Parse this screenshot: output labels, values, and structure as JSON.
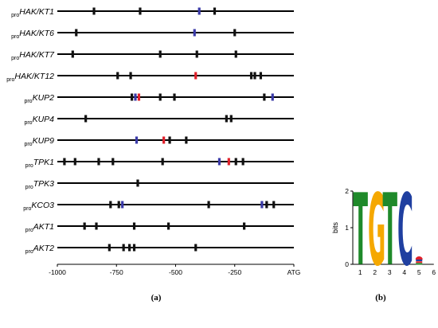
{
  "panel_a": {
    "label": "(a)",
    "promoters": [
      {
        "prefix": "pro",
        "name": "HAK/KT1",
        "black": [
          -845,
          -650,
          -335
        ],
        "blue": [
          -400
        ],
        "red": []
      },
      {
        "prefix": "pro",
        "name": "HAK/KT6",
        "black": [
          -920,
          -250
        ],
        "blue": [
          -420
        ],
        "red": []
      },
      {
        "prefix": "pro",
        "name": "HAK/KT7",
        "black": [
          -935,
          -565,
          -410,
          -245
        ],
        "blue": [],
        "red": []
      },
      {
        "prefix": "pro",
        "name": "HAK/KT12",
        "black": [
          -745,
          -690,
          -180,
          -165,
          -140
        ],
        "blue": [],
        "red": [
          -415
        ]
      },
      {
        "prefix": "pro",
        "name": "KUP2",
        "black": [
          -685,
          -565,
          -505,
          -125
        ],
        "blue": [
          -670,
          -90
        ],
        "red": [
          -655
        ]
      },
      {
        "prefix": "pro",
        "name": "KUP4",
        "black": [
          -880,
          -285,
          -265
        ],
        "blue": [],
        "red": []
      },
      {
        "prefix": "pro",
        "name": "KUP9",
        "black": [
          -525,
          -455
        ],
        "blue": [
          -665
        ],
        "red": [
          -550
        ]
      },
      {
        "prefix": "pro",
        "name": "TPK1",
        "black": [
          -970,
          -925,
          -825,
          -765,
          -555,
          -245,
          -215
        ],
        "blue": [
          -315
        ],
        "red": [
          -275
        ]
      },
      {
        "prefix": "pro",
        "name": "TPK3",
        "black": [
          -660
        ],
        "blue": [],
        "red": []
      },
      {
        "prefix": "pro",
        "name": "KCO3",
        "black": [
          -775,
          -740,
          -360,
          -115,
          -85
        ],
        "blue": [
          -725,
          -135
        ],
        "red": []
      },
      {
        "prefix": "pro",
        "name": "AKT1",
        "black": [
          -885,
          -835,
          -675,
          -530,
          -210
        ],
        "blue": [],
        "red": []
      },
      {
        "prefix": "pro",
        "name": "AKT2",
        "black": [
          -780,
          -720,
          -695,
          -675,
          -415
        ],
        "blue": [],
        "red": []
      }
    ],
    "axis": {
      "range": [
        -1000,
        0
      ],
      "ticks": [
        {
          "value": -1000,
          "label": "-1000"
        },
        {
          "value": -750,
          "label": "-750"
        },
        {
          "value": -500,
          "label": "-500"
        },
        {
          "value": -250,
          "label": "-250"
        },
        {
          "value": 0,
          "label": "ATG"
        }
      ]
    },
    "colors": {
      "line": "#000000",
      "black_site": "#111111",
      "blue_site": "#3a3aa8",
      "red_site": "#e0202a"
    }
  },
  "panel_b": {
    "label": "(b)",
    "ylabel": "bits",
    "y_ticks": [
      "0",
      "1",
      "2"
    ],
    "x_ticks": [
      "1",
      "2",
      "3",
      "4",
      "5",
      "6"
    ],
    "letters": [
      "T",
      "G",
      "T",
      "C"
    ],
    "letter_colors": [
      "#d62728",
      "#f2a900",
      "#d62728",
      "#1f4fb5"
    ],
    "t_colors": {
      "T": "#e0202a",
      "G": "#f5a800",
      "C": "#1f3fa0",
      "A": "#1f8a2a"
    }
  },
  "chart_data": {
    "type": "scatter",
    "xlabel": "",
    "ylabel": "bits",
    "x": [
      1,
      2,
      3,
      4,
      5
    ],
    "series": [
      {
        "name": "T",
        "values": [
          2,
          0,
          2,
          0,
          0.1
        ]
      },
      {
        "name": "G",
        "values": [
          0,
          2,
          0,
          0,
          0.1
        ]
      },
      {
        "name": "C",
        "values": [
          0,
          0,
          0,
          2,
          0.1
        ]
      },
      {
        "name": "A",
        "values": [
          0,
          0,
          0,
          0,
          0.1
        ]
      }
    ],
    "ylim": [
      0,
      2
    ],
    "xlim": [
      0.5,
      6
    ]
  }
}
